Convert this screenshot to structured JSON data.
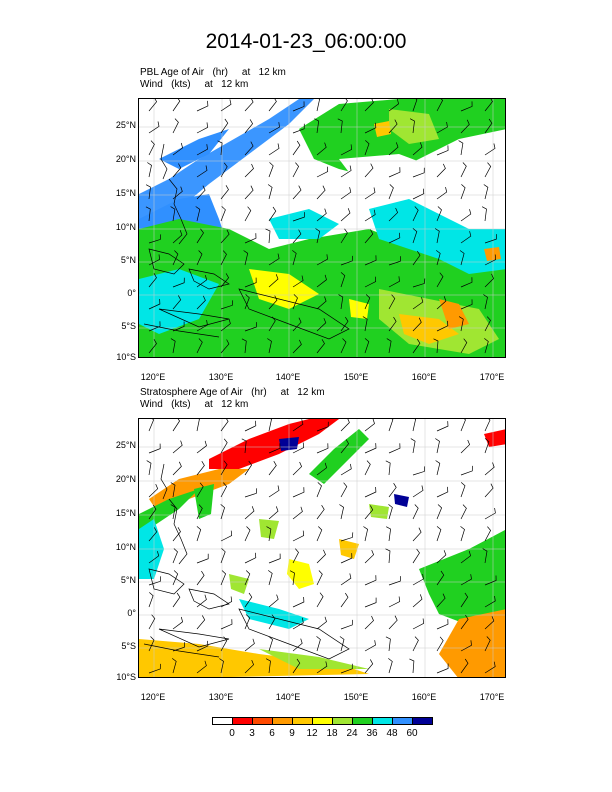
{
  "title": "2014-01-23_06:00:00",
  "panels": [
    {
      "label_line1": "PBL Age of Air   (hr)     at   12 km",
      "label_line2": "Wind   (kts)     at   12 km"
    },
    {
      "label_line1": "Stratosphere Age of Air   (hr)     at   12 km",
      "label_line2": "Wind   (kts)     at   12 km"
    }
  ],
  "lat_ticks": [
    "25°N",
    "20°N",
    "15°N",
    "10°N",
    "5°N",
    "0°",
    "5°S",
    "10°S"
  ],
  "lon_ticks": [
    "120°E",
    "130°E",
    "140°E",
    "150°E",
    "160°E",
    "170°E"
  ],
  "colorbar": {
    "labels": [
      "0",
      "3",
      "6",
      "9",
      "12",
      "18",
      "24",
      "36",
      "48",
      "60"
    ],
    "colors": [
      "#ffffff",
      "#ff0000",
      "#ff4a00",
      "#ff9a00",
      "#ffc800",
      "#ffff00",
      "#a0e632",
      "#20d020",
      "#00e6e6",
      "#3090ff",
      "#000096"
    ]
  }
}
